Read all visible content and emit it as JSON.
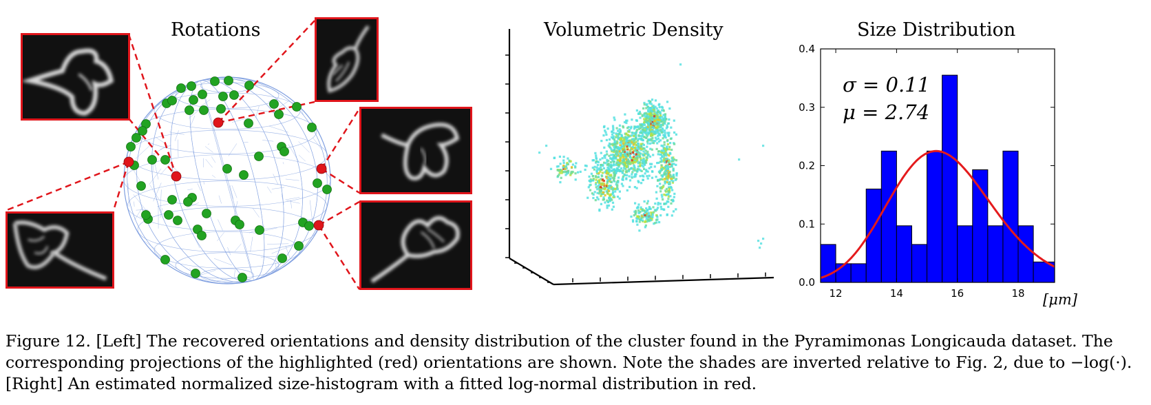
{
  "panels": {
    "rotations_title": "Rotations",
    "density_title": "Volumetric Density",
    "size_title": "Size Distribution"
  },
  "colors": {
    "highlight_red": "#e0151b",
    "orientation_green": "#22a322",
    "sphere_mesh": "#7f9fe0",
    "histogram_blue": "#0000ff",
    "fit_red": "#e41a1c"
  },
  "histogram": {
    "sigma_text": "σ = 0.11",
    "mu_text": "μ = 2.74",
    "unit_text": "[μm]"
  },
  "chart_data": {
    "type": "bar",
    "title": "Size Distribution",
    "xlabel": "[μm]",
    "ylabel": "",
    "xlim": [
      11.5,
      19.2
    ],
    "ylim": [
      0.0,
      0.4
    ],
    "x_ticks": [
      "12",
      "14",
      "16",
      "18"
    ],
    "y_ticks": [
      "0.0",
      "0.1",
      "0.2",
      "0.3",
      "0.4"
    ],
    "bins": [
      {
        "x0": 11.5,
        "x1": 12.0,
        "value": 0.065
      },
      {
        "x0": 12.0,
        "x1": 12.5,
        "value": 0.032
      },
      {
        "x0": 12.5,
        "x1": 13.0,
        "value": 0.032
      },
      {
        "x0": 13.0,
        "x1": 13.5,
        "value": 0.16
      },
      {
        "x0": 13.5,
        "x1": 14.0,
        "value": 0.225
      },
      {
        "x0": 14.0,
        "x1": 14.5,
        "value": 0.097
      },
      {
        "x0": 14.5,
        "x1": 15.0,
        "value": 0.065
      },
      {
        "x0": 15.0,
        "x1": 15.5,
        "value": 0.225
      },
      {
        "x0": 15.5,
        "x1": 16.0,
        "value": 0.355
      },
      {
        "x0": 16.0,
        "x1": 16.5,
        "value": 0.097
      },
      {
        "x0": 16.5,
        "x1": 17.0,
        "value": 0.193
      },
      {
        "x0": 17.0,
        "x1": 17.5,
        "value": 0.097
      },
      {
        "x0": 17.5,
        "x1": 18.0,
        "value": 0.225
      },
      {
        "x0": 18.0,
        "x1": 18.5,
        "value": 0.097
      },
      {
        "x0": 18.5,
        "x1": 19.2,
        "value": 0.035
      }
    ],
    "fit": {
      "type": "lognormal",
      "mu": 2.74,
      "sigma": 0.11,
      "peak": 0.225
    }
  },
  "caption": {
    "line1": "Figure 12. [Left] The recovered orientations and density distribution of the cluster found in the Pyramimonas Longicauda dataset.  The",
    "line2": "corresponding projections of the highlighted (red) orientations are shown. Note the shades are inverted relative to Fig. 2, due to −log(·).",
    "line3": "[Right] An estimated normalized size-histogram with a fitted log-normal distribution in red."
  }
}
